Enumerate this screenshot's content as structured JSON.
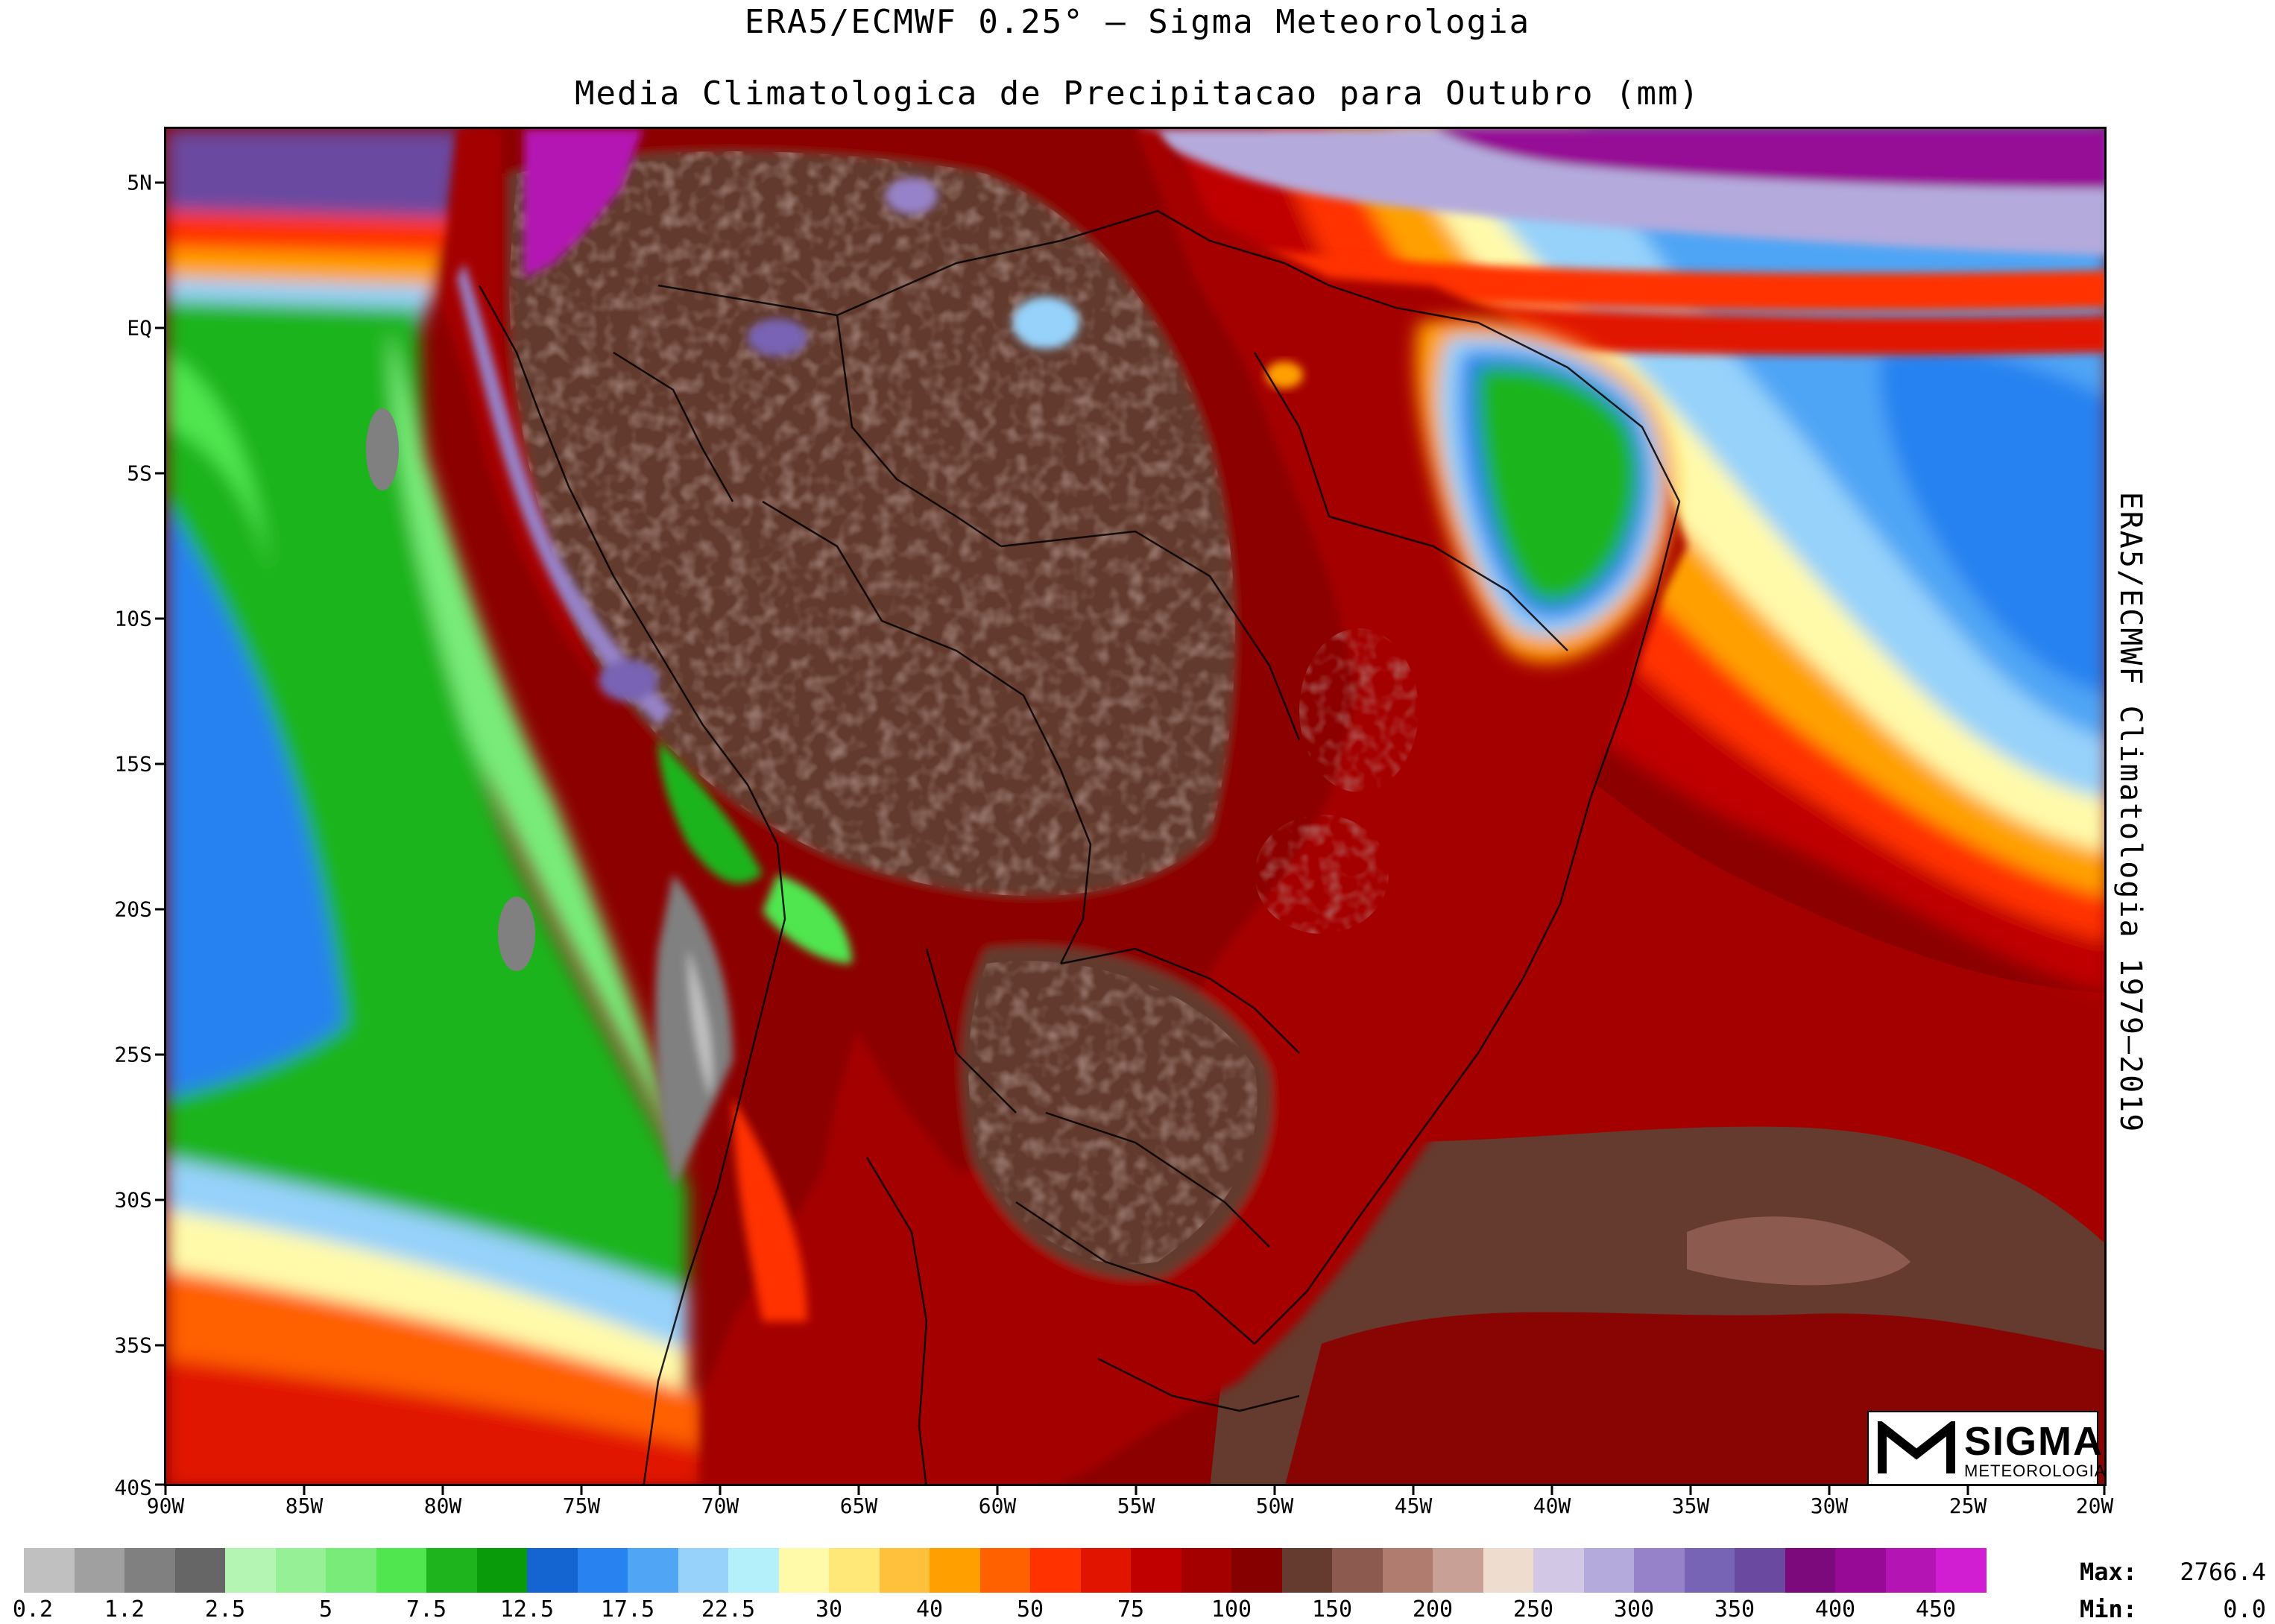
{
  "header": {
    "title": "ERA5/ECMWF 0.25° – Sigma Meteorologia",
    "subtitle": "Media Climatologica de Precipitacao para Outubro (mm)"
  },
  "side_label": "ERA5/ECMWF Climatologia 1979–2019",
  "map": {
    "lat_labels": [
      "5N",
      "EQ",
      "5S",
      "10S",
      "15S",
      "20S",
      "25S",
      "30S",
      "35S",
      "40S"
    ],
    "lon_labels": [
      "90W",
      "85W",
      "80W",
      "75W",
      "70W",
      "65W",
      "60W",
      "55W",
      "50W",
      "45W",
      "40W",
      "35W",
      "30W",
      "25W",
      "20W"
    ]
  },
  "colorbar": {
    "colors": [
      "#c0c0c0",
      "#a0a0a0",
      "#808080",
      "#666666",
      "#b4f5b4",
      "#96f096",
      "#78eb78",
      "#50e650",
      "#1eb41e",
      "#0a9b0a",
      "#1464d2",
      "#2882f0",
      "#50a5f5",
      "#96d2fa",
      "#b4f0fa",
      "#fffaaa",
      "#ffe878",
      "#ffc03c",
      "#ffa000",
      "#ff6000",
      "#ff3200",
      "#e11400",
      "#c00000",
      "#a50000",
      "#870000",
      "#643b2e",
      "#8c5a4e",
      "#b07c70",
      "#c8a096",
      "#eedccf",
      "#d2c8e6",
      "#b4aadc",
      "#9682c8",
      "#7864b4",
      "#6a4aa0",
      "#7d0a7d",
      "#960a96",
      "#b414b4",
      "#d21ed2"
    ],
    "labels": [
      "0.2",
      "1.2",
      "2.5",
      "5",
      "7.5",
      "12.5",
      "17.5",
      "22.5",
      "30",
      "40",
      "50",
      "75",
      "100",
      "150",
      "200",
      "250",
      "300",
      "350",
      "400",
      "450"
    ]
  },
  "stats": {
    "max_label": "Max:",
    "max_value": "2766.4",
    "min_label": "Min:",
    "min_value": "0.0"
  },
  "logo": {
    "word": "SIGMA",
    "sub": "METEOROLOGIA"
  }
}
